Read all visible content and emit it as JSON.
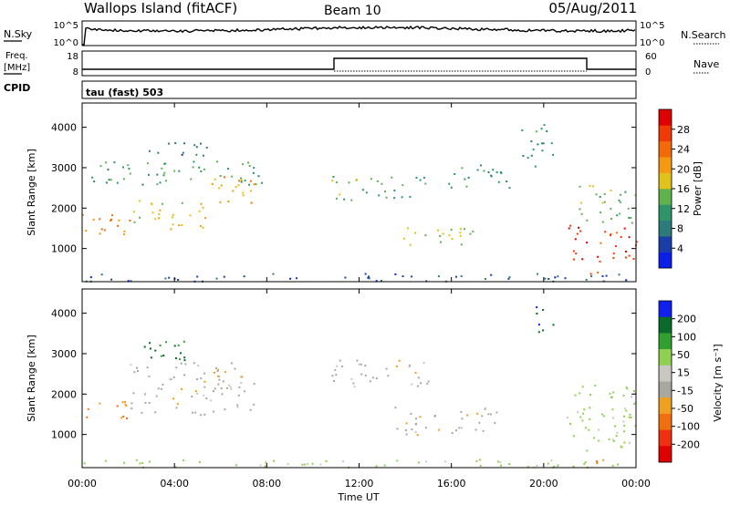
{
  "header": {
    "station": "Wallops Island (fitACF)",
    "beam": "Beam 10",
    "date": "05/Aug/2011"
  },
  "top_panels": {
    "nsky_label": "N.Sky",
    "nsky_ticks": [
      "10^5",
      "10^0"
    ],
    "nsearch_label": "N.Search",
    "nsearch_ticks": [
      "10^5",
      "10^0"
    ],
    "freq_label_line1": "Freq.",
    "freq_label_line2": "[MHz]",
    "freq_ticks": [
      "18",
      "8"
    ],
    "nave_label": "Nave",
    "nave_ticks": [
      "60",
      "0"
    ],
    "cpid_label": "CPID",
    "cpid_value": "tau (fast) 503"
  },
  "colors": {
    "power_scale": [
      "#0a1fe8",
      "#1a3ea8",
      "#2c7a7a",
      "#2f9468",
      "#5fb24e",
      "#e0c21a",
      "#f59a10",
      "#f56a08",
      "#f03a05",
      "#e00000"
    ],
    "velocity_scale": [
      "#1020ee",
      "#0a6a2a",
      "#30a030",
      "#90d050",
      "#c8c8c0",
      "#a8a8a0",
      "#f0a020",
      "#f07010",
      "#f03010",
      "#e00000"
    ]
  },
  "icons": {},
  "chart_data": [
    {
      "type": "heatmap",
      "title": "",
      "quantity": "Power",
      "ylabel": "Slant Range [km]",
      "xlabel": "",
      "ylim": [
        180,
        4600
      ],
      "xlim": [
        0,
        24
      ],
      "y_ticks": [
        "1000",
        "2000",
        "3000",
        "4000"
      ],
      "y_tick_values": [
        1000,
        2000,
        3000,
        4000
      ],
      "colorbar_label": "Power [dB]",
      "colorbar_ticks": [
        "4",
        "8",
        "12",
        "16",
        "20",
        "24",
        "28"
      ],
      "colorbar_tick_values": [
        4,
        8,
        12,
        16,
        20,
        24,
        28
      ],
      "colorbar_range": [
        0,
        32
      ],
      "features": [
        {
          "t": [
            0.0,
            2.2
          ],
          "range": [
            1300,
            1900
          ],
          "value": 22
        },
        {
          "t": [
            2.2,
            5.5
          ],
          "range": [
            1500,
            2200
          ],
          "value": 18
        },
        {
          "t": [
            5.5,
            7.5
          ],
          "range": [
            2000,
            2800
          ],
          "value": 20
        },
        {
          "t": [
            0.2,
            7.8
          ],
          "range": [
            2600,
            3200
          ],
          "value": 12
        },
        {
          "t": [
            2.5,
            5.5
          ],
          "range": [
            3300,
            3700
          ],
          "value": 8
        },
        {
          "t": [
            10.8,
            15.0
          ],
          "range": [
            2200,
            2800
          ],
          "value": 14
        },
        {
          "t": [
            13.5,
            17.0
          ],
          "range": [
            1100,
            1600
          ],
          "value": 16
        },
        {
          "t": [
            15.5,
            18.5
          ],
          "range": [
            2500,
            3100
          ],
          "value": 12
        },
        {
          "t": [
            19.0,
            20.4
          ],
          "range": [
            3000,
            4100
          ],
          "value": 10
        },
        {
          "t": [
            21.0,
            24.0
          ],
          "range": [
            700,
            1600
          ],
          "value": 28
        },
        {
          "t": [
            21.5,
            24.0
          ],
          "range": [
            1600,
            2600
          ],
          "value": 14
        },
        {
          "t": [
            22.0,
            23.0
          ],
          "range": [
            350,
            550
          ],
          "value": 26
        },
        {
          "t": [
            0.0,
            24.0
          ],
          "range": [
            200,
            400
          ],
          "value": 6
        }
      ]
    },
    {
      "type": "heatmap",
      "title": "",
      "quantity": "Velocity",
      "ylabel": "Slant Range [km]",
      "xlabel": "Time UT",
      "ylim": [
        180,
        4600
      ],
      "xlim": [
        0,
        24
      ],
      "y_ticks": [
        "1000",
        "2000",
        "3000",
        "4000"
      ],
      "y_tick_values": [
        1000,
        2000,
        3000,
        4000
      ],
      "x_ticks": [
        "00:00",
        "04:00",
        "08:00",
        "12:00",
        "16:00",
        "20:00",
        "00:00"
      ],
      "x_tick_values": [
        0,
        4,
        8,
        12,
        16,
        20,
        24
      ],
      "colorbar_label": "Velocity [m s⁻¹]",
      "colorbar_ticks": [
        "200",
        "100",
        "50",
        "15",
        "-15",
        "-50",
        "-100",
        "-200"
      ],
      "features": [
        {
          "t": [
            0.0,
            2.0
          ],
          "range": [
            1400,
            1900
          ],
          "value": -50
        },
        {
          "t": [
            2.0,
            7.5
          ],
          "range": [
            1500,
            2800
          ],
          "value": 0
        },
        {
          "t": [
            2.0,
            4.5
          ],
          "range": [
            2800,
            3400
          ],
          "value": 150
        },
        {
          "t": [
            10.8,
            15.0
          ],
          "range": [
            2200,
            2900
          ],
          "value": 0
        },
        {
          "t": [
            13.5,
            18.0
          ],
          "range": [
            1000,
            1700
          ],
          "value": 0
        },
        {
          "t": [
            19.5,
            20.4
          ],
          "range": [
            3500,
            4200
          ],
          "value": 200
        },
        {
          "t": [
            21.0,
            24.0
          ],
          "range": [
            600,
            2300
          ],
          "value": 60
        },
        {
          "t": [
            21.5,
            23.0
          ],
          "range": [
            300,
            500
          ],
          "value": -60
        },
        {
          "t": [
            0.0,
            24.0
          ],
          "range": [
            200,
            400
          ],
          "value": 60
        }
      ]
    }
  ]
}
